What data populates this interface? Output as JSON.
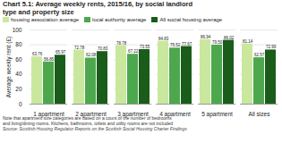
{
  "chart_data": {
    "type": "bar",
    "title": "Chart 5.1: Average weekly rents, 2015/16, by social landlord\ntype and property size",
    "categories": [
      "1 apartment",
      "2 apartment",
      "3 apartment",
      "4 apartment",
      "5 apartment",
      "All sizes"
    ],
    "series": [
      {
        "name": "housing association average",
        "color": "#c9e89e",
        "values": [
          63.76,
          72.78,
          78.78,
          84.83,
          86.94,
          81.14
        ],
        "value_labels": [
          "63.76",
          "72.78",
          "78.78",
          "84.83",
          "86.94",
          "81.14"
        ]
      },
      {
        "name": "local authority average",
        "color": "#4da84d",
        "values": [
          56.85,
          62.08,
          67.22,
          75.52,
          79.5,
          62.57
        ],
        "value_labels": [
          "56.85",
          "62.08",
          "67.22",
          "75.52",
          "79.50",
          "62.57"
        ]
      },
      {
        "name": "All social housing average",
        "color": "#1a5c1a",
        "values": [
          65.97,
          70.83,
          73.55,
          77.67,
          86.02,
          72.99
        ],
        "value_labels": [
          "65.97",
          "70.83",
          "73.55",
          "77.67",
          "86.02",
          "72.99"
        ]
      }
    ],
    "ylabel": "Average weekly rent (£)",
    "ylim": [
      0,
      100
    ],
    "yticks": [
      0,
      20,
      40,
      60,
      80,
      100
    ],
    "grid": true,
    "legend": "upper left",
    "data_labels": true,
    "annotations": [
      "Note that apartment size categories are based on a count of the number of bedrooms\nand living/dining rooms.  Kitchens, bathrooms, toilets and utility rooms are not included",
      "Source: Scottish Housing Regulator Reports on the Scottish Social Housing Charter Findings"
    ]
  }
}
